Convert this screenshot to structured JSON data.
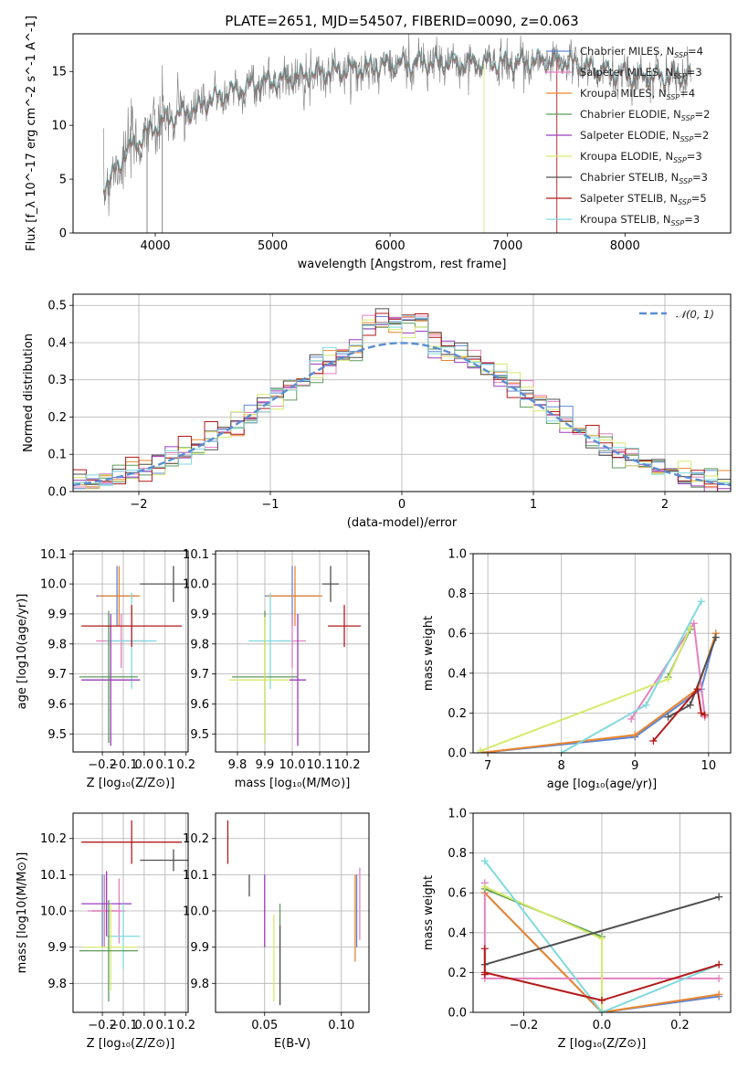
{
  "colors": {
    "Chabrier MILES": "#5f86d2",
    "Salpeter MILES": "#e580c0",
    "Kroupa MILES": "#e9852e",
    "Chabrier ELODIE": "#5e9b58",
    "Salpeter ELODIE": "#9a3cc0",
    "Kroupa ELODIE": "#d6ea6c",
    "Chabrier STELIB": "#505050",
    "Salpeter STELIB": "#b31a1a",
    "Kroupa STELIB": "#7fd9dd",
    "gaussian": "#5a8ed2",
    "spectrum": "#7a7a7a"
  },
  "chart_data": [
    {
      "id": "spectrum",
      "type": "line",
      "title": "PLATE=2651, MJD=54507, FIBERID=0090, z=0.063",
      "xlabel": "wavelength [Angstrom, rest frame]",
      "ylabel": "Flux [f_λ 10^-17 erg cm^-2 s^-1 A^-1]",
      "xlim": [
        3300,
        8900
      ],
      "ylim": [
        0,
        18.5
      ],
      "xticks": [
        4000,
        5000,
        6000,
        7000,
        8000
      ],
      "yticks": [
        0,
        5,
        10,
        15
      ],
      "continuum": [
        [
          3550,
          4.5
        ],
        [
          3650,
          5.5
        ],
        [
          3750,
          7.5
        ],
        [
          3850,
          8.5
        ],
        [
          3950,
          9.5
        ],
        [
          4050,
          10.3
        ],
        [
          4150,
          10.8
        ],
        [
          4250,
          11.2
        ],
        [
          4350,
          11.5
        ],
        [
          4500,
          12.5
        ],
        [
          4700,
          13.3
        ],
        [
          4900,
          13.9
        ],
        [
          5100,
          14.3
        ],
        [
          5300,
          14.7
        ],
        [
          5500,
          15.0
        ],
        [
          5700,
          15.2
        ],
        [
          5900,
          15.5
        ],
        [
          6100,
          15.7
        ],
        [
          6300,
          15.8
        ],
        [
          6500,
          15.8
        ],
        [
          6700,
          15.7
        ],
        [
          6900,
          15.8
        ],
        [
          7100,
          15.8
        ],
        [
          7300,
          16.0
        ],
        [
          7500,
          15.9
        ],
        [
          7700,
          15.3
        ],
        [
          7900,
          14.8
        ],
        [
          8100,
          14.5
        ],
        [
          8300,
          14.5
        ],
        [
          8500,
          14.6
        ]
      ],
      "legend": [
        {
          "name": "Chabrier MILES",
          "nssp": "4"
        },
        {
          "name": "Salpeter MILES",
          "nssp": "3"
        },
        {
          "name": "Kroupa MILES",
          "nssp": "4"
        },
        {
          "name": "Chabrier ELODIE",
          "nssp": "2"
        },
        {
          "name": "Salpeter ELODIE",
          "nssp": "2"
        },
        {
          "name": "Kroupa ELODIE",
          "nssp": "3"
        },
        {
          "name": "Chabrier STELIB",
          "nssp": "3"
        },
        {
          "name": "Salpeter STELIB",
          "nssp": "5"
        },
        {
          "name": "Kroupa STELIB",
          "nssp": "3"
        }
      ],
      "legend_placement": "right"
    },
    {
      "id": "residuals",
      "type": "line",
      "xlabel": "(data-model)/error",
      "ylabel": "Normed distribution",
      "xlim": [
        -2.5,
        2.5
      ],
      "ylim": [
        0,
        0.53
      ],
      "xticks": [
        -2,
        -1,
        0,
        1,
        2
      ],
      "yticks": [
        0.0,
        0.1,
        0.2,
        0.3,
        0.4,
        0.5
      ],
      "legend": "𝒩(0, 1)",
      "legend_placement": "top-right",
      "grid": true
    },
    {
      "id": "age-vs-Z",
      "type": "scatter",
      "xlabel": "Z [log10(Z/Z⊙)]",
      "ylabel": "age  [log10(age/yr)]",
      "xlim": [
        -0.34,
        0.21
      ],
      "ylim": [
        9.44,
        10.11
      ],
      "xticks": [
        -0.2,
        -0.1,
        0.0,
        0.1,
        0.2
      ],
      "yticks": [
        9.5,
        9.6,
        9.7,
        9.8,
        9.9,
        10.0,
        10.1
      ],
      "points": [
        {
          "model": "Chabrier MILES",
          "x": -0.13,
          "y": 9.96,
          "xerr": 0.1,
          "yerr": 0.1
        },
        {
          "model": "Kroupa MILES",
          "x": -0.12,
          "y": 9.96,
          "xerr": 0.1,
          "yerr": 0.1
        },
        {
          "model": "Salpeter MILES",
          "x": -0.11,
          "y": 9.81,
          "xerr": 0.12,
          "yerr": 0.09
        },
        {
          "model": "Kroupa STELIB",
          "x": -0.06,
          "y": 9.81,
          "xerr": 0.12,
          "yerr": 0.16
        },
        {
          "model": "Chabrier ELODIE",
          "x": -0.17,
          "y": 9.69,
          "xerr": 0.14,
          "yerr": 0.22
        },
        {
          "model": "Kroupa ELODIE",
          "x": -0.16,
          "y": 9.68,
          "xerr": 0.13,
          "yerr": 0.21
        },
        {
          "model": "Salpeter ELODIE",
          "x": -0.16,
          "y": 9.68,
          "xerr": 0.14,
          "yerr": 0.22
        },
        {
          "model": "Chabrier STELIB",
          "x": 0.14,
          "y": 10.0,
          "xerr": 0.16,
          "yerr": 0.06
        },
        {
          "model": "Salpeter STELIB",
          "x": -0.06,
          "y": 9.86,
          "xerr": 0.24,
          "yerr": 0.07
        }
      ],
      "grid": true
    },
    {
      "id": "age-vs-mass",
      "type": "scatter",
      "xlabel": "mass [log10(M/M⊙)]",
      "ylabel": "",
      "xlim": [
        9.72,
        10.28
      ],
      "ylim": [
        9.44,
        10.11
      ],
      "xticks": [
        9.8,
        9.9,
        10.0,
        10.1,
        10.2
      ],
      "yticks": [
        9.5,
        9.6,
        9.7,
        9.8,
        9.9,
        10.0,
        10.1
      ],
      "points": [
        {
          "model": "Chabrier MILES",
          "x": 10.0,
          "y": 9.96,
          "xerr": 0.1,
          "yerr": 0.1
        },
        {
          "model": "Kroupa MILES",
          "x": 10.01,
          "y": 9.96,
          "xerr": 0.1,
          "yerr": 0.1
        },
        {
          "model": "Salpeter MILES",
          "x": 10.0,
          "y": 9.81,
          "xerr": 0.05,
          "yerr": 0.09
        },
        {
          "model": "Kroupa STELIB",
          "x": 9.92,
          "y": 9.81,
          "xerr": 0.08,
          "yerr": 0.16
        },
        {
          "model": "Chabrier ELODIE",
          "x": 9.9,
          "y": 9.69,
          "xerr": 0.12,
          "yerr": 0.22
        },
        {
          "model": "Kroupa ELODIE",
          "x": 9.9,
          "y": 9.68,
          "xerr": 0.13,
          "yerr": 0.21
        },
        {
          "model": "Salpeter ELODIE",
          "x": 10.02,
          "y": 9.68,
          "xerr": 0.03,
          "yerr": 0.22
        },
        {
          "model": "Chabrier STELIB",
          "x": 10.14,
          "y": 10.0,
          "xerr": 0.03,
          "yerr": 0.06
        },
        {
          "model": "Salpeter STELIB",
          "x": 10.19,
          "y": 9.86,
          "xerr": 0.06,
          "yerr": 0.07
        }
      ],
      "grid": true
    },
    {
      "id": "massweight-vs-age",
      "type": "line",
      "xlabel": "age  [log10(age/yr)]",
      "ylabel": "mass weight",
      "xlim": [
        6.8,
        10.3
      ],
      "ylim": [
        0,
        1.0
      ],
      "xticks": [
        7,
        8,
        9,
        10
      ],
      "yticks": [
        0.0,
        0.2,
        0.4,
        0.6,
        0.8,
        1.0
      ],
      "series": [
        {
          "model": "Chabrier MILES",
          "x": [
            6.9,
            9.0,
            9.9,
            10.1
          ],
          "y": [
            0.0,
            0.08,
            0.32,
            0.6
          ]
        },
        {
          "model": "Kroupa MILES",
          "x": [
            6.9,
            9.0,
            9.85,
            10.1
          ],
          "y": [
            0.0,
            0.09,
            0.32,
            0.6
          ]
        },
        {
          "model": "Salpeter MILES",
          "x": [
            8.95,
            9.8,
            9.95
          ],
          "y": [
            0.17,
            0.65,
            0.18
          ]
        },
        {
          "model": "Chabrier ELODIE",
          "x": [
            9.45,
            9.75
          ],
          "y": [
            0.38,
            0.62
          ]
        },
        {
          "model": "Kroupa ELODIE",
          "x": [
            6.9,
            9.45,
            9.75
          ],
          "y": [
            0.01,
            0.37,
            0.63
          ]
        },
        {
          "model": "Kroupa STELIB",
          "x": [
            8.0,
            9.15,
            9.9
          ],
          "y": [
            0.0,
            0.24,
            0.76
          ]
        },
        {
          "model": "Chabrier STELIB",
          "x": [
            9.45,
            9.75,
            10.1
          ],
          "y": [
            0.18,
            0.24,
            0.58
          ]
        },
        {
          "model": "Salpeter STELIB",
          "x": [
            9.25,
            9.85,
            9.9,
            9.95
          ],
          "y": [
            0.06,
            0.32,
            0.2,
            0.19
          ]
        }
      ],
      "grid": true
    },
    {
      "id": "mass-vs-Z",
      "type": "scatter",
      "xlabel": "Z [log10(Z/Z⊙)]",
      "ylabel": "mass [log10(M/M⊙)]",
      "xlim": [
        -0.34,
        0.21
      ],
      "ylim": [
        9.72,
        10.27
      ],
      "xticks": [
        -0.2,
        -0.1,
        0.0,
        0.1,
        0.2
      ],
      "yticks": [
        9.8,
        9.9,
        10.0,
        10.1,
        10.2
      ],
      "points": [
        {
          "model": "Chabrier MILES",
          "x": -0.2,
          "y": 10.0,
          "xerr": 0.05,
          "yerr": 0.1
        },
        {
          "model": "Kroupa MILES",
          "x": -0.19,
          "y": 10.0,
          "xerr": 0.06,
          "yerr": 0.1
        },
        {
          "model": "Salpeter MILES",
          "x": -0.19,
          "y": 10.0,
          "xerr": 0.08,
          "yerr": 0.1
        },
        {
          "model": "Salpeter MILES",
          "x": -0.12,
          "y": 10.0,
          "xerr": 0.03,
          "yerr": 0.09
        },
        {
          "model": "Salpeter ELODIE",
          "x": -0.18,
          "y": 10.02,
          "xerr": 0.12,
          "yerr": 0.09
        },
        {
          "model": "Kroupa STELIB",
          "x": -0.1,
          "y": 9.93,
          "xerr": 0.08,
          "yerr": 0.09
        },
        {
          "model": "Kroupa ELODIE",
          "x": -0.16,
          "y": 9.9,
          "xerr": 0.13,
          "yerr": 0.12
        },
        {
          "model": "Chabrier ELODIE",
          "x": -0.17,
          "y": 9.89,
          "xerr": 0.14,
          "yerr": 0.14
        },
        {
          "model": "Chabrier STELIB",
          "x": 0.14,
          "y": 10.14,
          "xerr": 0.16,
          "yerr": 0.03
        },
        {
          "model": "Salpeter STELIB",
          "x": -0.06,
          "y": 10.19,
          "xerr": 0.24,
          "yerr": 0.06
        }
      ],
      "grid": true
    },
    {
      "id": "mass-vs-ebv",
      "type": "scatter",
      "xlabel": "E(B-V)",
      "ylabel": "",
      "xlim": [
        0.018,
        0.118
      ],
      "ylim": [
        9.72,
        10.27
      ],
      "xticks": [
        0.05,
        0.1
      ],
      "yticks": [
        9.8,
        9.9,
        10.0,
        10.1,
        10.2
      ],
      "points": [
        {
          "model": "Salpeter STELIB",
          "x": 0.026,
          "y": 10.19,
          "yerr": 0.06
        },
        {
          "model": "Chabrier STELIB",
          "x": 0.04,
          "y": 10.07,
          "yerr": 0.03
        },
        {
          "model": "Salpeter ELODIE",
          "x": 0.05,
          "y": 10.0,
          "yerr": 0.1
        },
        {
          "model": "Kroupa ELODIE",
          "x": 0.056,
          "y": 9.87,
          "yerr": 0.12
        },
        {
          "model": "Chabrier ELODIE",
          "x": 0.06,
          "y": 9.88,
          "yerr": 0.14
        },
        {
          "model": "Chabrier STELIB",
          "x": 0.06,
          "y": 9.85,
          "yerr": 0.11
        },
        {
          "model": "Kroupa MILES",
          "x": 0.109,
          "y": 9.98,
          "yerr": 0.12
        },
        {
          "model": "Chabrier MILES",
          "x": 0.11,
          "y": 10.0,
          "yerr": 0.1
        },
        {
          "model": "Salpeter MILES",
          "x": 0.112,
          "y": 10.02,
          "yerr": 0.1
        }
      ],
      "grid": true
    },
    {
      "id": "massweight-vs-Z",
      "type": "line",
      "xlabel": "Z [log10(Z/Z⊙)]",
      "ylabel": "mass weight",
      "xlim": [
        -0.33,
        0.33
      ],
      "ylim": [
        0,
        1.0
      ],
      "xticks": [
        -0.2,
        0.0,
        0.2
      ],
      "yticks": [
        0.0,
        0.2,
        0.4,
        0.6,
        0.8,
        1.0
      ],
      "series": [
        {
          "model": "Chabrier MILES",
          "x": [
            -0.3,
            0.0,
            0.3
          ],
          "y": [
            0.6,
            0.0,
            0.08
          ]
        },
        {
          "model": "Kroupa MILES",
          "x": [
            -0.3,
            0.0,
            0.3
          ],
          "y": [
            0.6,
            0.0,
            0.09
          ]
        },
        {
          "model": "Salpeter MILES",
          "x": [
            -0.3,
            -0.3,
            0.3
          ],
          "y": [
            0.65,
            0.17,
            0.17
          ]
        },
        {
          "model": "Chabrier ELODIE",
          "x": [
            -0.3,
            0.0
          ],
          "y": [
            0.62,
            0.38
          ]
        },
        {
          "model": "Kroupa ELODIE",
          "x": [
            -0.3,
            0.0,
            0.0
          ],
          "y": [
            0.63,
            0.37,
            0.01
          ]
        },
        {
          "model": "Kroupa STELIB",
          "x": [
            -0.3,
            0.0,
            0.3
          ],
          "y": [
            0.76,
            0.0,
            0.24
          ]
        },
        {
          "model": "Chabrier STELIB",
          "x": [
            -0.3,
            0.3
          ],
          "y": [
            0.24,
            0.58
          ]
        },
        {
          "model": "Salpeter STELIB",
          "x": [
            -0.3,
            -0.3,
            -0.3,
            0.0,
            0.3
          ],
          "y": [
            0.32,
            0.19,
            0.2,
            0.06,
            0.24
          ]
        }
      ],
      "grid": true
    }
  ]
}
